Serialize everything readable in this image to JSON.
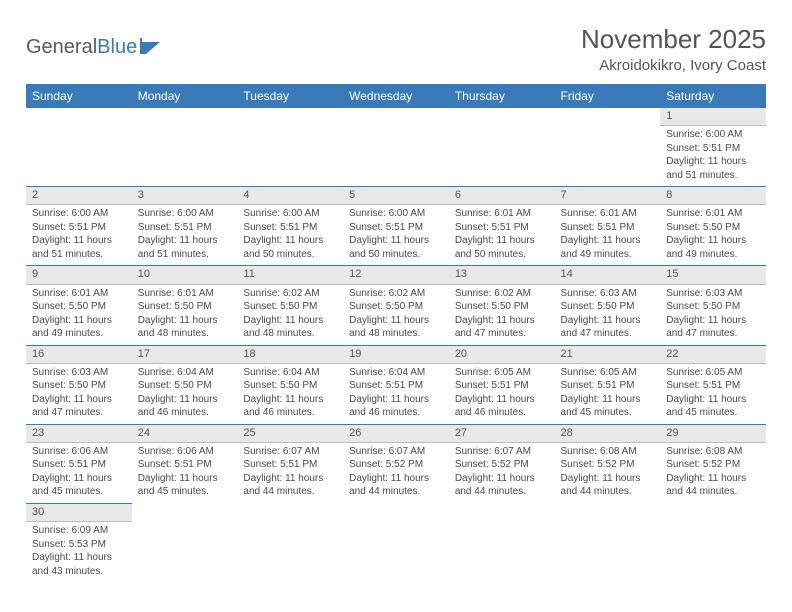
{
  "logo": {
    "text_a": "General",
    "text_b": "Blue"
  },
  "header": {
    "month_title": "November 2025",
    "location": "Akroidokikro, Ivory Coast"
  },
  "colors": {
    "header_bg": "#3a7ab8",
    "header_fg": "#ffffff",
    "daynum_bg": "#e8e8e8",
    "rule": "#3a7ab8",
    "text": "#4a4a4a"
  },
  "day_headers": [
    "Sunday",
    "Monday",
    "Tuesday",
    "Wednesday",
    "Thursday",
    "Friday",
    "Saturday"
  ],
  "weeks": [
    [
      null,
      null,
      null,
      null,
      null,
      null,
      {
        "n": "1",
        "sunrise": "Sunrise: 6:00 AM",
        "sunset": "Sunset: 5:51 PM",
        "daylight": "Daylight: 11 hours and 51 minutes."
      }
    ],
    [
      {
        "n": "2",
        "sunrise": "Sunrise: 6:00 AM",
        "sunset": "Sunset: 5:51 PM",
        "daylight": "Daylight: 11 hours and 51 minutes."
      },
      {
        "n": "3",
        "sunrise": "Sunrise: 6:00 AM",
        "sunset": "Sunset: 5:51 PM",
        "daylight": "Daylight: 11 hours and 51 minutes."
      },
      {
        "n": "4",
        "sunrise": "Sunrise: 6:00 AM",
        "sunset": "Sunset: 5:51 PM",
        "daylight": "Daylight: 11 hours and 50 minutes."
      },
      {
        "n": "5",
        "sunrise": "Sunrise: 6:00 AM",
        "sunset": "Sunset: 5:51 PM",
        "daylight": "Daylight: 11 hours and 50 minutes."
      },
      {
        "n": "6",
        "sunrise": "Sunrise: 6:01 AM",
        "sunset": "Sunset: 5:51 PM",
        "daylight": "Daylight: 11 hours and 50 minutes."
      },
      {
        "n": "7",
        "sunrise": "Sunrise: 6:01 AM",
        "sunset": "Sunset: 5:51 PM",
        "daylight": "Daylight: 11 hours and 49 minutes."
      },
      {
        "n": "8",
        "sunrise": "Sunrise: 6:01 AM",
        "sunset": "Sunset: 5:50 PM",
        "daylight": "Daylight: 11 hours and 49 minutes."
      }
    ],
    [
      {
        "n": "9",
        "sunrise": "Sunrise: 6:01 AM",
        "sunset": "Sunset: 5:50 PM",
        "daylight": "Daylight: 11 hours and 49 minutes."
      },
      {
        "n": "10",
        "sunrise": "Sunrise: 6:01 AM",
        "sunset": "Sunset: 5:50 PM",
        "daylight": "Daylight: 11 hours and 48 minutes."
      },
      {
        "n": "11",
        "sunrise": "Sunrise: 6:02 AM",
        "sunset": "Sunset: 5:50 PM",
        "daylight": "Daylight: 11 hours and 48 minutes."
      },
      {
        "n": "12",
        "sunrise": "Sunrise: 6:02 AM",
        "sunset": "Sunset: 5:50 PM",
        "daylight": "Daylight: 11 hours and 48 minutes."
      },
      {
        "n": "13",
        "sunrise": "Sunrise: 6:02 AM",
        "sunset": "Sunset: 5:50 PM",
        "daylight": "Daylight: 11 hours and 47 minutes."
      },
      {
        "n": "14",
        "sunrise": "Sunrise: 6:03 AM",
        "sunset": "Sunset: 5:50 PM",
        "daylight": "Daylight: 11 hours and 47 minutes."
      },
      {
        "n": "15",
        "sunrise": "Sunrise: 6:03 AM",
        "sunset": "Sunset: 5:50 PM",
        "daylight": "Daylight: 11 hours and 47 minutes."
      }
    ],
    [
      {
        "n": "16",
        "sunrise": "Sunrise: 6:03 AM",
        "sunset": "Sunset: 5:50 PM",
        "daylight": "Daylight: 11 hours and 47 minutes."
      },
      {
        "n": "17",
        "sunrise": "Sunrise: 6:04 AM",
        "sunset": "Sunset: 5:50 PM",
        "daylight": "Daylight: 11 hours and 46 minutes."
      },
      {
        "n": "18",
        "sunrise": "Sunrise: 6:04 AM",
        "sunset": "Sunset: 5:50 PM",
        "daylight": "Daylight: 11 hours and 46 minutes."
      },
      {
        "n": "19",
        "sunrise": "Sunrise: 6:04 AM",
        "sunset": "Sunset: 5:51 PM",
        "daylight": "Daylight: 11 hours and 46 minutes."
      },
      {
        "n": "20",
        "sunrise": "Sunrise: 6:05 AM",
        "sunset": "Sunset: 5:51 PM",
        "daylight": "Daylight: 11 hours and 46 minutes."
      },
      {
        "n": "21",
        "sunrise": "Sunrise: 6:05 AM",
        "sunset": "Sunset: 5:51 PM",
        "daylight": "Daylight: 11 hours and 45 minutes."
      },
      {
        "n": "22",
        "sunrise": "Sunrise: 6:05 AM",
        "sunset": "Sunset: 5:51 PM",
        "daylight": "Daylight: 11 hours and 45 minutes."
      }
    ],
    [
      {
        "n": "23",
        "sunrise": "Sunrise: 6:06 AM",
        "sunset": "Sunset: 5:51 PM",
        "daylight": "Daylight: 11 hours and 45 minutes."
      },
      {
        "n": "24",
        "sunrise": "Sunrise: 6:06 AM",
        "sunset": "Sunset: 5:51 PM",
        "daylight": "Daylight: 11 hours and 45 minutes."
      },
      {
        "n": "25",
        "sunrise": "Sunrise: 6:07 AM",
        "sunset": "Sunset: 5:51 PM",
        "daylight": "Daylight: 11 hours and 44 minutes."
      },
      {
        "n": "26",
        "sunrise": "Sunrise: 6:07 AM",
        "sunset": "Sunset: 5:52 PM",
        "daylight": "Daylight: 11 hours and 44 minutes."
      },
      {
        "n": "27",
        "sunrise": "Sunrise: 6:07 AM",
        "sunset": "Sunset: 5:52 PM",
        "daylight": "Daylight: 11 hours and 44 minutes."
      },
      {
        "n": "28",
        "sunrise": "Sunrise: 6:08 AM",
        "sunset": "Sunset: 5:52 PM",
        "daylight": "Daylight: 11 hours and 44 minutes."
      },
      {
        "n": "29",
        "sunrise": "Sunrise: 6:08 AM",
        "sunset": "Sunset: 5:52 PM",
        "daylight": "Daylight: 11 hours and 44 minutes."
      }
    ],
    [
      {
        "n": "30",
        "sunrise": "Sunrise: 6:09 AM",
        "sunset": "Sunset: 5:53 PM",
        "daylight": "Daylight: 11 hours and 43 minutes."
      },
      null,
      null,
      null,
      null,
      null,
      null
    ]
  ]
}
